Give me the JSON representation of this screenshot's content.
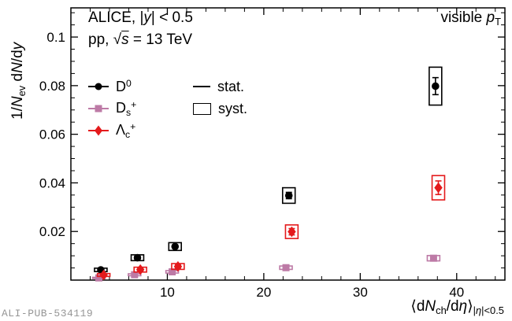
{
  "watermark": "ALI-PUB-534119",
  "chart_data": {
    "type": "scatter",
    "title": "",
    "annotations": {
      "top_left_line1": "ALICE, |<i>y</i>| &lt; 0.5",
      "top_left_line2": "pp, √<i class=\"ol\">s</i> = 13 TeV",
      "top_right": "visible <i>p</i><sub>T</sub>"
    },
    "xlabel_html": "⟨d<i>N</i><sub>ch</sub>/d<i>η</i>⟩<sub>|<i>η</i>|&lt;0.5</sub>",
    "ylabel_html": "1/<i>N</i><sub>ev</sub> d<i>N</i>/d<i>y</i>",
    "xlabel_text": "<dN_ch/deta>_|eta|<0.5",
    "ylabel_text": "1/N_ev dN/dy",
    "xlim": [
      0,
      45
    ],
    "ylim": [
      0,
      0.112
    ],
    "x_ticks": [
      10,
      20,
      30,
      40
    ],
    "x_tick_labels": [
      "10",
      "20",
      "30",
      "40"
    ],
    "x_minor_step": 2,
    "y_ticks": [
      0.02,
      0.04,
      0.06,
      0.08,
      0.1
    ],
    "y_tick_labels": [
      "0.02",
      "0.04",
      "0.06",
      "0.08",
      "0.1"
    ],
    "y_minor_step": 0.005,
    "grid": false,
    "legend": {
      "position": "top-left",
      "stat_label": "stat.",
      "syst_label": "syst."
    },
    "syst_box_halfwidth": 0.65,
    "series": [
      {
        "name": "D0",
        "label_html": "D<sup>0</sup>",
        "marker": "circle",
        "color": "#000000",
        "x": [
          3.1,
          6.9,
          10.8,
          22.6,
          37.8
        ],
        "y": [
          0.0042,
          0.0092,
          0.0138,
          0.0348,
          0.0798
        ],
        "stat_err": [
          0.0004,
          0.0005,
          0.0006,
          0.0013,
          0.0035
        ],
        "syst_err": [
          0.0007,
          0.0012,
          0.0016,
          0.0032,
          0.0078
        ]
      },
      {
        "name": "Ds+",
        "label_html": "D<sub>s</sub><sup>+</sup>",
        "marker": "square",
        "color": "#bd7aa6",
        "x": [
          2.9,
          6.6,
          10.5,
          22.3,
          37.6
        ],
        "y": [
          0.0009,
          0.0022,
          0.0034,
          0.0051,
          0.009
        ],
        "stat_err": [
          0.0002,
          0.0002,
          0.0003,
          0.0003,
          0.0005
        ],
        "syst_err": [
          0.00025,
          0.0004,
          0.0005,
          0.0007,
          0.0011
        ]
      },
      {
        "name": "Lc+",
        "label_html": "Λ<sub>c</sub><sup>+</sup>",
        "marker": "diamond",
        "color": "#e41a1c",
        "x": [
          3.4,
          7.2,
          11.1,
          22.9,
          38.1
        ],
        "y": [
          0.0021,
          0.0043,
          0.0056,
          0.0199,
          0.038
        ],
        "stat_err": [
          0.0005,
          0.0006,
          0.0007,
          0.0013,
          0.0028
        ],
        "syst_err": [
          0.0006,
          0.001,
          0.0012,
          0.0028,
          0.005
        ]
      }
    ]
  }
}
